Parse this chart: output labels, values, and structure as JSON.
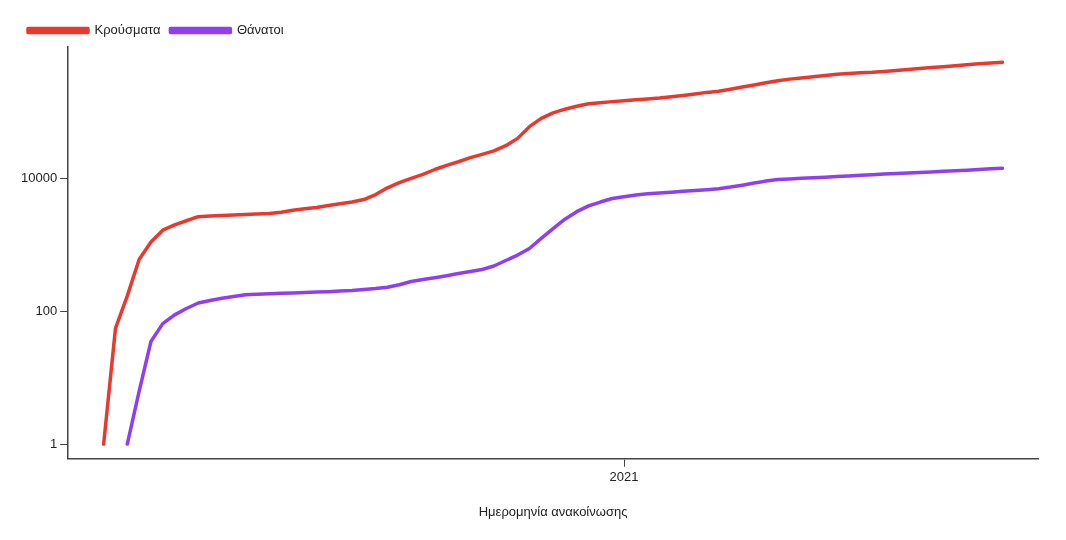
{
  "chart_data": {
    "type": "line",
    "xlabel": "Ημερομηνία ανακοίνωσης",
    "log": "y",
    "grid": false,
    "legend": "top left",
    "marker": "none",
    "line_style": "solid",
    "categories": [
      null,
      null,
      null,
      null,
      null,
      null,
      null,
      null,
      null,
      null,
      null,
      null,
      null,
      null,
      null,
      null,
      null,
      null,
      null,
      null,
      null,
      null,
      null,
      null,
      null,
      null,
      null,
      null,
      null,
      null,
      null,
      null,
      null,
      null,
      null,
      null,
      null,
      null,
      null,
      null,
      null,
      null,
      null,
      null,
      null,
      null,
      null,
      "2021",
      null,
      null,
      null,
      null,
      null,
      null,
      null,
      null,
      null,
      null,
      null,
      null,
      null,
      null,
      null,
      null,
      null,
      null,
      null,
      null,
      null,
      null,
      null,
      null,
      null,
      null,
      null,
      null,
      null,
      null,
      null,
      null,
      null,
      null,
      null
    ],
    "ylim": [
      0.6,
      950000
    ],
    "yticks": [
      1,
      100,
      10000
    ],
    "series": [
      {
        "name": "Κρούσματα",
        "color": "#e8392f",
        "values": [
          null,
          null,
          null,
          1,
          55,
          170,
          600,
          1100,
          1660,
          2000,
          2300,
          2650,
          2720,
          2770,
          2810,
          2860,
          2910,
          2950,
          3100,
          3300,
          3500,
          3650,
          3900,
          4150,
          4400,
          4800,
          5700,
          7200,
          8600,
          10000,
          11500,
          13600,
          15700,
          17800,
          20500,
          23000,
          26000,
          31000,
          40000,
          60000,
          80000,
          97000,
          110000,
          122000,
          133000,
          138000,
          143000,
          147000,
          152000,
          157000,
          162000,
          169000,
          177000,
          186000,
          197000,
          205000,
          220000,
          237000,
          255000,
          275000,
          295000,
          312000,
          325000,
          340000,
          355000,
          368000,
          378000,
          388000,
          395000,
          406000,
          420000,
          435000,
          450000,
          466000,
          481000,
          497000,
          513000,
          530000,
          546000,
          560000,
          null,
          null,
          null
        ]
      },
      {
        "name": "Θάνατοι",
        "color": "#8f3ff0",
        "values": [
          null,
          null,
          null,
          null,
          null,
          1,
          6.2,
          35,
          65,
          88,
          110,
          133,
          145,
          157,
          167,
          177,
          180,
          183,
          186,
          188,
          191,
          194,
          197,
          201,
          205,
          213,
          219,
          230,
          250,
          280,
          300,
          320,
          343,
          370,
          395,
          425,
          480,
          580,
          700,
          880,
          1250,
          1750,
          2430,
          3150,
          3850,
          4400,
          4970,
          5300,
          5600,
          5850,
          6000,
          6200,
          6400,
          6550,
          6750,
          7000,
          7400,
          7900,
          8500,
          9100,
          9600,
          9800,
          10000,
          10200,
          10400,
          10650,
          10900,
          11100,
          11350,
          11600,
          11800,
          12000,
          12250,
          12500,
          12750,
          13000,
          13300,
          13600,
          13900,
          14200,
          null,
          null,
          null
        ]
      }
    ]
  }
}
